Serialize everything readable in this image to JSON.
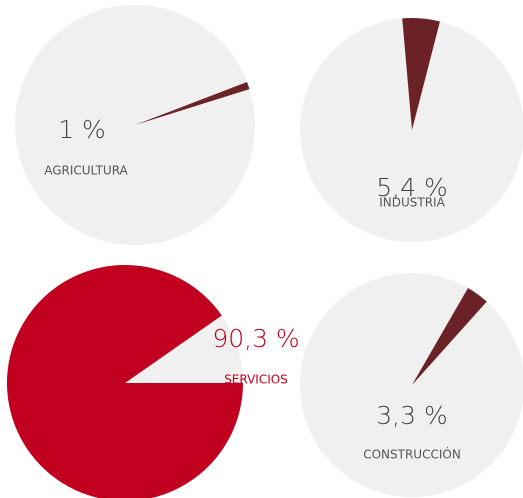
{
  "chart_data": [
    {
      "type": "pie",
      "categories": [
        "AGRICULTURA"
      ],
      "values": [
        1
      ],
      "value_labels": [
        "1 %"
      ],
      "color": "#6b2226"
    },
    {
      "type": "pie",
      "categories": [
        "INDUSTRIA"
      ],
      "values": [
        5.4
      ],
      "value_labels": [
        "5,4 %"
      ],
      "color": "#6b2226"
    },
    {
      "type": "pie",
      "categories": [
        "SERVICIOS"
      ],
      "values": [
        90.3
      ],
      "value_labels": [
        "90,3 %"
      ],
      "color": "#c0001e"
    },
    {
      "type": "pie",
      "categories": [
        "CONSTRUCCIÓN"
      ],
      "values": [
        3.3
      ],
      "value_labels": [
        "3,3 %"
      ],
      "color": "#6b2226"
    }
  ]
}
